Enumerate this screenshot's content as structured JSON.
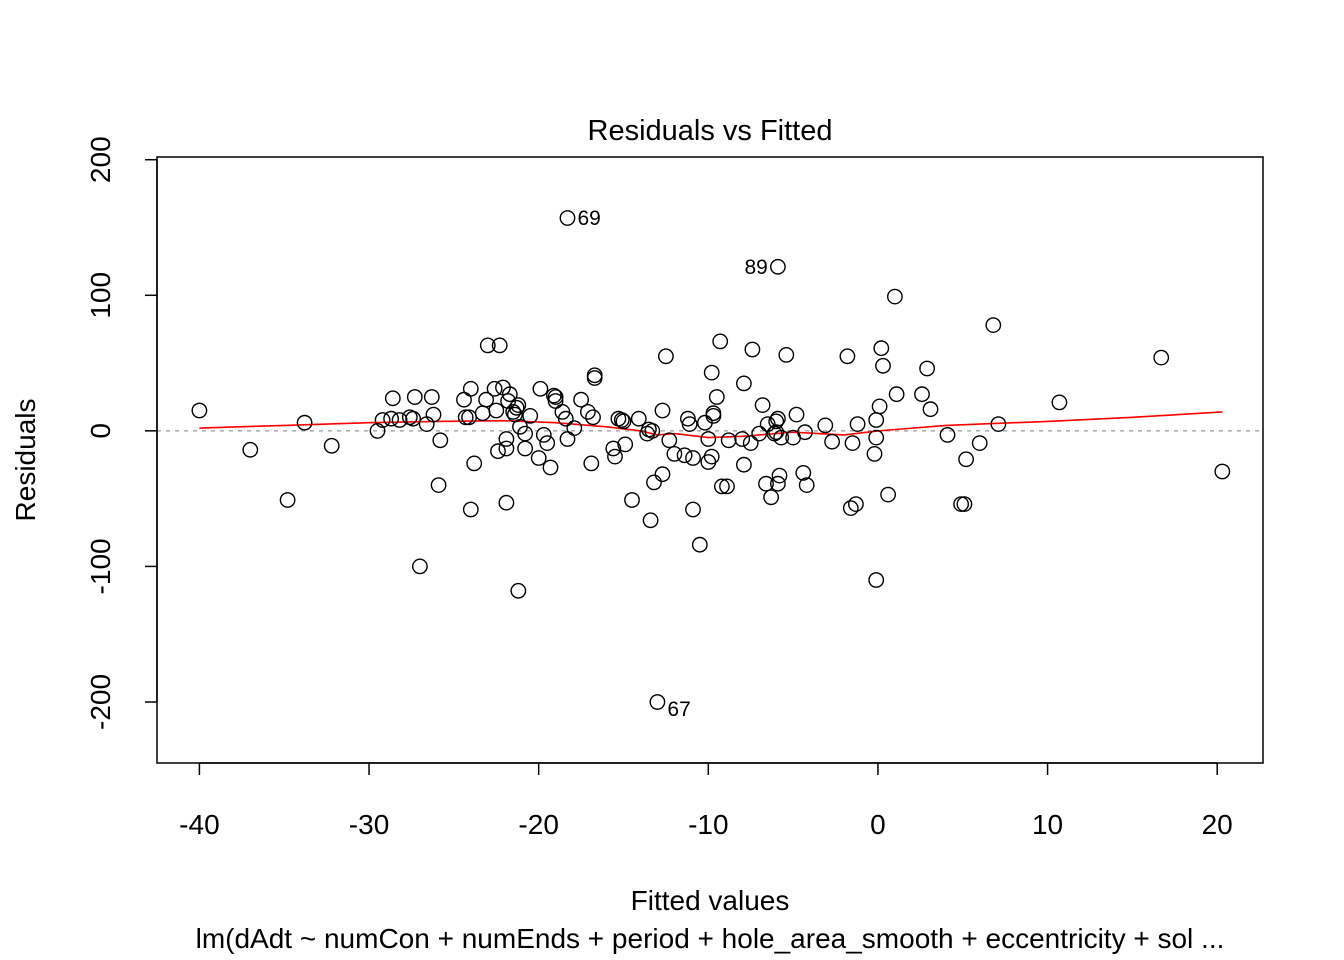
{
  "chart_data": {
    "type": "scatter",
    "title": "Residuals vs Fitted",
    "xlabel": "Fitted values",
    "ylabel": "Residuals",
    "subtitle": "lm(dAdt ~ numCon + numEnds + period + hole_area_smooth + eccentricity + sol ...",
    "xlim": [
      -42.5,
      22.7
    ],
    "ylim": [
      -245,
      202
    ],
    "xticks": [
      -40,
      -30,
      -20,
      -10,
      0,
      10,
      20
    ],
    "xtick_labels": [
      "-40",
      "-30",
      "-20",
      "-10",
      "0",
      "10",
      "20"
    ],
    "yticks": [
      -200,
      -100,
      0,
      100,
      200
    ],
    "ytick_labels": [
      "-200",
      "-100",
      "0",
      "100",
      "200"
    ],
    "reference_line_y": 0,
    "points": [
      [
        -40.0,
        15
      ],
      [
        -37.0,
        -14
      ],
      [
        -34.8,
        -51
      ],
      [
        -33.8,
        6
      ],
      [
        -32.2,
        -11
      ],
      [
        -29.5,
        0
      ],
      [
        -29.2,
        8
      ],
      [
        -28.7,
        9
      ],
      [
        -28.6,
        24
      ],
      [
        -28.2,
        8
      ],
      [
        -27.6,
        10
      ],
      [
        -27.4,
        9
      ],
      [
        -27.3,
        25
      ],
      [
        -27.0,
        -100
      ],
      [
        -26.6,
        5
      ],
      [
        -26.3,
        25
      ],
      [
        -26.2,
        12
      ],
      [
        -25.9,
        -40
      ],
      [
        -25.8,
        -7
      ],
      [
        -24.4,
        23
      ],
      [
        -24.3,
        10
      ],
      [
        -24.1,
        10
      ],
      [
        -24.0,
        31
      ],
      [
        -24.0,
        -58
      ],
      [
        -23.8,
        -24
      ],
      [
        -23.3,
        13
      ],
      [
        -23.1,
        23
      ],
      [
        -23.0,
        63
      ],
      [
        -22.6,
        31
      ],
      [
        -22.5,
        15
      ],
      [
        -22.4,
        -15
      ],
      [
        -22.3,
        63
      ],
      [
        -22.1,
        32
      ],
      [
        -21.9,
        -6
      ],
      [
        -21.9,
        -13
      ],
      [
        -21.9,
        -53
      ],
      [
        -21.8,
        22
      ],
      [
        -21.7,
        27
      ],
      [
        -21.5,
        14
      ],
      [
        -21.4,
        12
      ],
      [
        -21.3,
        17
      ],
      [
        -21.2,
        19
      ],
      [
        -21.2,
        -118
      ],
      [
        -21.1,
        3
      ],
      [
        -20.8,
        -13
      ],
      [
        -20.8,
        -2
      ],
      [
        -20.5,
        11
      ],
      [
        -20.0,
        -20
      ],
      [
        -19.9,
        31
      ],
      [
        -19.7,
        -3
      ],
      [
        -19.5,
        -9
      ],
      [
        -19.3,
        -27
      ],
      [
        -19.1,
        26
      ],
      [
        -19.0,
        22
      ],
      [
        -19.0,
        25
      ],
      [
        -18.6,
        14
      ],
      [
        -18.4,
        9
      ],
      [
        -18.3,
        -6
      ],
      [
        -18.3,
        157
      ],
      [
        -17.9,
        2
      ],
      [
        -17.5,
        23
      ],
      [
        -17.1,
        14
      ],
      [
        -16.9,
        -24
      ],
      [
        -16.8,
        10
      ],
      [
        -16.7,
        39
      ],
      [
        -16.7,
        41
      ],
      [
        -15.6,
        -13
      ],
      [
        -15.5,
        -19
      ],
      [
        -15.3,
        9
      ],
      [
        -15.1,
        8
      ],
      [
        -15.0,
        7
      ],
      [
        -14.9,
        -10
      ],
      [
        -14.5,
        -51
      ],
      [
        -14.1,
        9
      ],
      [
        -13.6,
        -2
      ],
      [
        -13.5,
        1
      ],
      [
        -13.4,
        -66
      ],
      [
        -13.3,
        0
      ],
      [
        -13.2,
        -38
      ],
      [
        -13.0,
        -200
      ],
      [
        -12.7,
        -32
      ],
      [
        -12.7,
        15
      ],
      [
        -12.5,
        55
      ],
      [
        -12.3,
        -7
      ],
      [
        -12.0,
        -17
      ],
      [
        -11.4,
        -18
      ],
      [
        -11.2,
        9
      ],
      [
        -11.1,
        5
      ],
      [
        -10.9,
        -20
      ],
      [
        -10.9,
        -58
      ],
      [
        -10.5,
        -84
      ],
      [
        -10.2,
        6
      ],
      [
        -10.0,
        -23
      ],
      [
        -10.0,
        -6
      ],
      [
        -9.8,
        43
      ],
      [
        -9.8,
        -19
      ],
      [
        -9.7,
        11
      ],
      [
        -9.7,
        13
      ],
      [
        -9.5,
        25
      ],
      [
        -9.3,
        66
      ],
      [
        -9.2,
        -41
      ],
      [
        -8.9,
        -41
      ],
      [
        -8.8,
        -7
      ],
      [
        -8.0,
        -6
      ],
      [
        -7.9,
        35
      ],
      [
        -7.9,
        -25
      ],
      [
        -7.5,
        -9
      ],
      [
        -7.4,
        60
      ],
      [
        -7.0,
        -2
      ],
      [
        -6.8,
        19
      ],
      [
        -6.6,
        -39
      ],
      [
        -6.5,
        5
      ],
      [
        -6.3,
        -49
      ],
      [
        -6.1,
        -2
      ],
      [
        -6.0,
        -1
      ],
      [
        -6.0,
        7
      ],
      [
        -5.9,
        9
      ],
      [
        -5.9,
        121
      ],
      [
        -5.9,
        -39
      ],
      [
        -5.8,
        -33
      ],
      [
        -5.7,
        -5
      ],
      [
        -5.4,
        56
      ],
      [
        -5.0,
        -5
      ],
      [
        -4.8,
        12
      ],
      [
        -4.4,
        -31
      ],
      [
        -4.3,
        -1
      ],
      [
        -4.2,
        -40
      ],
      [
        -3.1,
        4
      ],
      [
        -2.7,
        -8
      ],
      [
        -1.8,
        55
      ],
      [
        -1.6,
        -57
      ],
      [
        -1.5,
        -9
      ],
      [
        -1.3,
        -54
      ],
      [
        -1.2,
        5
      ],
      [
        -0.2,
        -17
      ],
      [
        -0.1,
        -5
      ],
      [
        -0.1,
        8
      ],
      [
        -0.1,
        -110
      ],
      [
        0.1,
        18
      ],
      [
        0.2,
        61
      ],
      [
        0.3,
        48
      ],
      [
        0.6,
        -47
      ],
      [
        1.0,
        99
      ],
      [
        1.1,
        27
      ],
      [
        2.6,
        27
      ],
      [
        2.9,
        46
      ],
      [
        3.1,
        16
      ],
      [
        4.1,
        -3
      ],
      [
        4.9,
        -54
      ],
      [
        5.1,
        -54
      ],
      [
        5.2,
        -21
      ],
      [
        6.0,
        -9
      ],
      [
        6.8,
        78
      ],
      [
        7.1,
        5
      ],
      [
        10.7,
        21
      ],
      [
        16.7,
        54
      ],
      [
        20.3,
        -30
      ]
    ],
    "labeled_points": [
      {
        "label": "69",
        "x": -18.3,
        "y": 157,
        "side": "right"
      },
      {
        "label": "89",
        "x": -5.9,
        "y": 121,
        "side": "left"
      },
      {
        "label": "67",
        "x": -13.0,
        "y": -200,
        "side": "right"
      }
    ],
    "smoother": [
      [
        -40.0,
        2
      ],
      [
        -35.0,
        4
      ],
      [
        -30.0,
        6
      ],
      [
        -26.0,
        7
      ],
      [
        -22.0,
        7.5
      ],
      [
        -19.0,
        6
      ],
      [
        -16.0,
        3
      ],
      [
        -14.0,
        0
      ],
      [
        -13.0,
        -3
      ],
      [
        -12.0,
        -2
      ],
      [
        -10.0,
        -5
      ],
      [
        -8.0,
        -4
      ],
      [
        -5.0,
        -1
      ],
      [
        -2.0,
        -3
      ],
      [
        0.0,
        0
      ],
      [
        4.0,
        4
      ],
      [
        10.0,
        7
      ],
      [
        15.0,
        10
      ],
      [
        20.3,
        14
      ]
    ],
    "colors": {
      "points": "#000000",
      "smoother": "#ff0000",
      "reference_line": "#999999",
      "frame": "#000000"
    }
  }
}
